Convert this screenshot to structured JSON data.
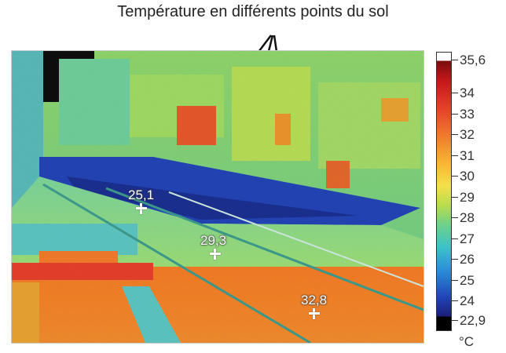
{
  "caption": "Température en différents points du sol",
  "readings": [
    {
      "value": "25,1"
    },
    {
      "value": "29,3"
    },
    {
      "value": "32,8"
    }
  ],
  "scale": {
    "max_label": "35,6",
    "min_label": "22,9",
    "ticks": [
      "34",
      "33",
      "32",
      "31",
      "30",
      "29",
      "28",
      "27",
      "26",
      "25",
      "24"
    ],
    "unit": "°C"
  },
  "colors": {
    "cold": "#1a2f9a",
    "mid": "#5fcf8f",
    "warm": "#f08a2a",
    "hot": "#c5161a"
  }
}
